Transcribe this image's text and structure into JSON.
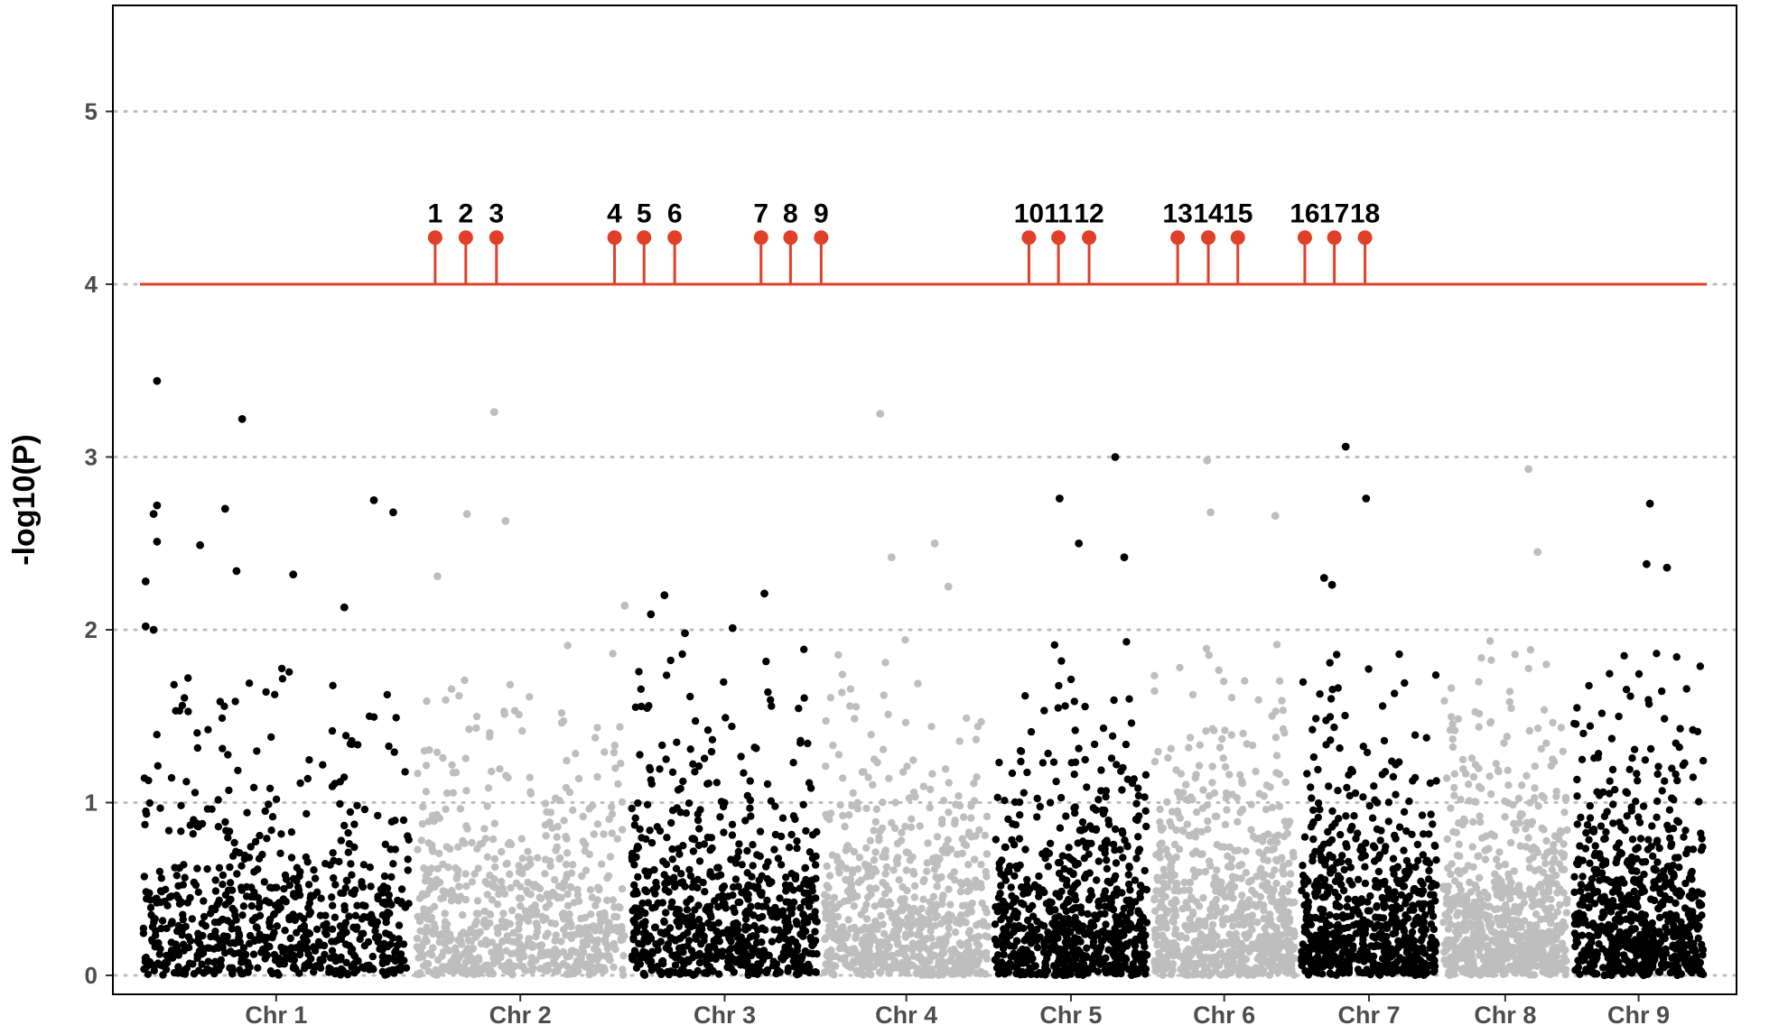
{
  "chart_data": {
    "type": "scatter",
    "title": "",
    "xlabel": "",
    "ylabel": "-log10(P)",
    "ylim": [
      0,
      5.6
    ],
    "y_ticks": [
      0,
      1,
      2,
      3,
      4,
      5
    ],
    "grid": "horizontal dotted at y ticks",
    "threshold": 4,
    "colors": {
      "odd_chromosome": "#000000",
      "even_chromosome": "#bebebe",
      "threshold_line": "#e0402a",
      "grid": "#bdbdbd",
      "tick_text": "#4d4d4d",
      "hit_label": "#000000"
    },
    "chromosomes": [
      {
        "label": "Chr 1",
        "start": 0,
        "end": 240,
        "color": "odd"
      },
      {
        "label": "Chr 2",
        "start": 240,
        "end": 430,
        "color": "even"
      },
      {
        "label": "Chr 3",
        "start": 430,
        "end": 600,
        "color": "odd"
      },
      {
        "label": "Chr 4",
        "start": 600,
        "end": 750,
        "color": "even"
      },
      {
        "label": "Chr 5",
        "start": 750,
        "end": 890,
        "color": "odd"
      },
      {
        "label": "Chr 6",
        "start": 890,
        "end": 1020,
        "color": "even"
      },
      {
        "label": "Chr 7",
        "start": 1020,
        "end": 1145,
        "color": "odd"
      },
      {
        "label": "Chr 8",
        "start": 1145,
        "end": 1260,
        "color": "even"
      },
      {
        "label": "Chr 9",
        "start": 1260,
        "end": 1380,
        "color": "odd"
      }
    ],
    "top_points": [
      {
        "x": 15,
        "y": 3.44
      },
      {
        "x": 90,
        "y": 3.22
      },
      {
        "x": 75,
        "y": 2.7
      },
      {
        "x": 15,
        "y": 2.72
      },
      {
        "x": 12,
        "y": 2.67
      },
      {
        "x": 53,
        "y": 2.49
      },
      {
        "x": 15,
        "y": 2.51
      },
      {
        "x": 5,
        "y": 2.28
      },
      {
        "x": 5,
        "y": 2.02
      },
      {
        "x": 12,
        "y": 2.0
      },
      {
        "x": 85,
        "y": 2.34
      },
      {
        "x": 135,
        "y": 2.32
      },
      {
        "x": 206,
        "y": 2.75
      },
      {
        "x": 223,
        "y": 2.68
      },
      {
        "x": 180,
        "y": 2.13
      },
      {
        "x": 312,
        "y": 3.26
      },
      {
        "x": 288,
        "y": 2.67
      },
      {
        "x": 322,
        "y": 2.63
      },
      {
        "x": 262,
        "y": 2.31
      },
      {
        "x": 427,
        "y": 2.14
      },
      {
        "x": 450,
        "y": 2.09
      },
      {
        "x": 462,
        "y": 2.2
      },
      {
        "x": 480,
        "y": 1.98
      },
      {
        "x": 522,
        "y": 2.01
      },
      {
        "x": 550,
        "y": 2.21
      },
      {
        "x": 652,
        "y": 3.25
      },
      {
        "x": 700,
        "y": 2.5
      },
      {
        "x": 662,
        "y": 2.42
      },
      {
        "x": 712,
        "y": 2.25
      },
      {
        "x": 810,
        "y": 2.76
      },
      {
        "x": 859,
        "y": 3.0
      },
      {
        "x": 827,
        "y": 2.5
      },
      {
        "x": 867,
        "y": 2.42
      },
      {
        "x": 940,
        "y": 2.98
      },
      {
        "x": 943,
        "y": 2.68
      },
      {
        "x": 1000,
        "y": 2.66
      },
      {
        "x": 1062,
        "y": 3.06
      },
      {
        "x": 1080,
        "y": 2.76
      },
      {
        "x": 1043,
        "y": 2.3
      },
      {
        "x": 1050,
        "y": 2.26
      },
      {
        "x": 1223,
        "y": 2.93
      },
      {
        "x": 1231,
        "y": 2.45
      },
      {
        "x": 1330,
        "y": 2.73
      },
      {
        "x": 1345,
        "y": 2.36
      },
      {
        "x": 1327,
        "y": 2.38
      }
    ],
    "hits": [
      {
        "label": "1",
        "x": 260,
        "y": 4.27
      },
      {
        "label": "2",
        "x": 287,
        "y": 4.27
      },
      {
        "label": "3",
        "x": 314,
        "y": 4.27
      },
      {
        "label": "4",
        "x": 418,
        "y": 4.27
      },
      {
        "label": "5",
        "x": 444,
        "y": 4.27
      },
      {
        "label": "6",
        "x": 471,
        "y": 4.27
      },
      {
        "label": "7",
        "x": 547,
        "y": 4.27
      },
      {
        "label": "8",
        "x": 573,
        "y": 4.27
      },
      {
        "label": "9",
        "x": 600,
        "y": 4.27
      },
      {
        "label": "10",
        "x": 783,
        "y": 4.27
      },
      {
        "label": "11",
        "x": 809,
        "y": 4.27
      },
      {
        "label": "12",
        "x": 836,
        "y": 4.27
      },
      {
        "label": "13",
        "x": 914,
        "y": 4.27
      },
      {
        "label": "14",
        "x": 941,
        "y": 4.27
      },
      {
        "label": "15",
        "x": 967,
        "y": 4.27
      },
      {
        "label": "16",
        "x": 1026,
        "y": 4.27
      },
      {
        "label": "17",
        "x": 1052,
        "y": 4.27
      },
      {
        "label": "18",
        "x": 1079,
        "y": 4.27
      }
    ],
    "background_points_per_chromosome": 700
  }
}
